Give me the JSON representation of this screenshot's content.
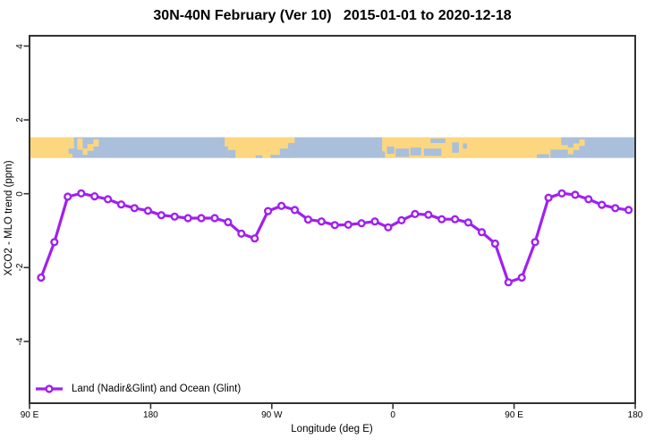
{
  "header": {
    "title": "30N-40N February (Ver 10)   2015-01-01 to 2020-12-18"
  },
  "colors": {
    "series": "#A020F0",
    "marker_fill": "#ffffff",
    "land": "#FCD77F",
    "ocean": "#A9BFDB",
    "axis": "#333333",
    "text": "#000000"
  },
  "axes": {
    "x": {
      "label": "Longitude (deg E)",
      "ticks": [
        {
          "pos": 90,
          "label": "90 E"
        },
        {
          "pos": 180,
          "label": "180"
        },
        {
          "pos": 270,
          "label": "90 W"
        },
        {
          "pos": 360,
          "label": "0"
        },
        {
          "pos": 450,
          "label": "90 E"
        },
        {
          "pos": 540,
          "label": "180"
        }
      ]
    },
    "y": {
      "label": "XCO2 - MLO trend (ppm)",
      "ticks": [
        {
          "pos": -4,
          "label": "-4"
        },
        {
          "pos": -2,
          "label": "-2"
        },
        {
          "pos": 0,
          "label": "0"
        },
        {
          "pos": 2,
          "label": "2"
        },
        {
          "pos": 4,
          "label": "4"
        }
      ]
    }
  },
  "legend": {
    "label": "Land (Nadir&Glint) and Ocean (Glint)"
  },
  "chart_data": {
    "type": "line",
    "title": "30N-40N February (Ver 10)   2015-01-01 to 2020-12-18",
    "xlabel": "Longitude (deg E)",
    "ylabel": "XCO2 - MLO trend (ppm)",
    "x_axis_note": "Longitude axis wraps eastward: 90E -> 180 -> 90W -> 0 -> 90E -> 180; x stored as continuous degrees 90-540",
    "xlim": [
      90,
      540
    ],
    "ylim": [
      -5.7,
      4.3
    ],
    "grid": false,
    "legend_position": "bottom-left-inside",
    "x": [
      98.6,
      108.5,
      118.4,
      128.4,
      138.3,
      148.2,
      158.1,
      168.0,
      178.0,
      187.9,
      197.8,
      207.7,
      217.6,
      227.6,
      237.5,
      247.4,
      257.3,
      267.2,
      277.2,
      287.1,
      297.0,
      306.9,
      316.8,
      326.8,
      336.7,
      346.6,
      356.5,
      366.4,
      376.4,
      386.3,
      396.2,
      406.1,
      416.0,
      426.0,
      435.9,
      445.8,
      455.7,
      465.6,
      475.6,
      485.5,
      495.4,
      505.3,
      515.2,
      525.2,
      535.1
    ],
    "series": [
      {
        "name": "Land (Nadir&Glint) and Ocean (Glint)",
        "marker": "open-circle",
        "values": [
          -2.27,
          -1.31,
          -0.08,
          0.01,
          -0.07,
          -0.15,
          -0.29,
          -0.39,
          -0.46,
          -0.58,
          -0.62,
          -0.66,
          -0.66,
          -0.66,
          -0.77,
          -1.08,
          -1.21,
          -0.47,
          -0.33,
          -0.44,
          -0.7,
          -0.75,
          -0.85,
          -0.84,
          -0.8,
          -0.75,
          -0.91,
          -0.72,
          -0.55,
          -0.57,
          -0.69,
          -0.69,
          -0.78,
          -1.04,
          -1.35,
          -2.4,
          -2.27,
          -1.31,
          -0.11,
          0.01,
          -0.03,
          -0.15,
          -0.3,
          -0.39,
          -0.44
        ]
      }
    ],
    "map_band": {
      "description": "30N-40N world map strip drawn across the plot",
      "y_range_ppm": [
        0.97,
        1.53
      ],
      "patches": [
        [
          90,
          119,
          0,
          1,
          "land"
        ],
        [
          119,
          123,
          0,
          0.55,
          "land"
        ],
        [
          119,
          122,
          0.8,
          1,
          "land"
        ],
        [
          125.5,
          129.5,
          0.05,
          0.6,
          "land"
        ],
        [
          129.5,
          133,
          0.55,
          0.85,
          "land"
        ],
        [
          133,
          137.5,
          0.33,
          0.66,
          "land"
        ],
        [
          137.5,
          141.5,
          0.1,
          0.45,
          "land"
        ],
        [
          235,
          237.5,
          0,
          0.45,
          "land"
        ],
        [
          237.5,
          287,
          0,
          1,
          "land"
        ],
        [
          237.5,
          243,
          0.62,
          1,
          "ocean"
        ],
        [
          258,
          263,
          0.88,
          1,
          "ocean"
        ],
        [
          269,
          276,
          0.85,
          1,
          "ocean"
        ],
        [
          276,
          287.2,
          0.55,
          1,
          "ocean"
        ],
        [
          282,
          287.2,
          0.28,
          0.55,
          "ocean"
        ],
        [
          352,
          490,
          0,
          1,
          "land"
        ],
        [
          352,
          354,
          0.68,
          1,
          "ocean"
        ],
        [
          355.5,
          361,
          0.45,
          0.8,
          "ocean"
        ],
        [
          362,
          372,
          0.55,
          0.95,
          "ocean"
        ],
        [
          373,
          381,
          0.5,
          0.88,
          "ocean"
        ],
        [
          383,
          396,
          0.55,
          0.9,
          "ocean"
        ],
        [
          388,
          399,
          0.06,
          0.28,
          "ocean"
        ],
        [
          404,
          409,
          0.25,
          0.75,
          "ocean"
        ],
        [
          412,
          415,
          0.3,
          0.55,
          "ocean"
        ],
        [
          467,
          476,
          0.82,
          1,
          "ocean"
        ],
        [
          477,
          490,
          0.6,
          1,
          "ocean"
        ],
        [
          485,
          490,
          0,
          0.38,
          "ocean"
        ],
        [
          490,
          494,
          0.5,
          0.82,
          "land"
        ],
        [
          494,
          498.5,
          0.3,
          0.62,
          "land"
        ],
        [
          498.5,
          502.5,
          0.1,
          0.42,
          "land"
        ]
      ]
    }
  }
}
